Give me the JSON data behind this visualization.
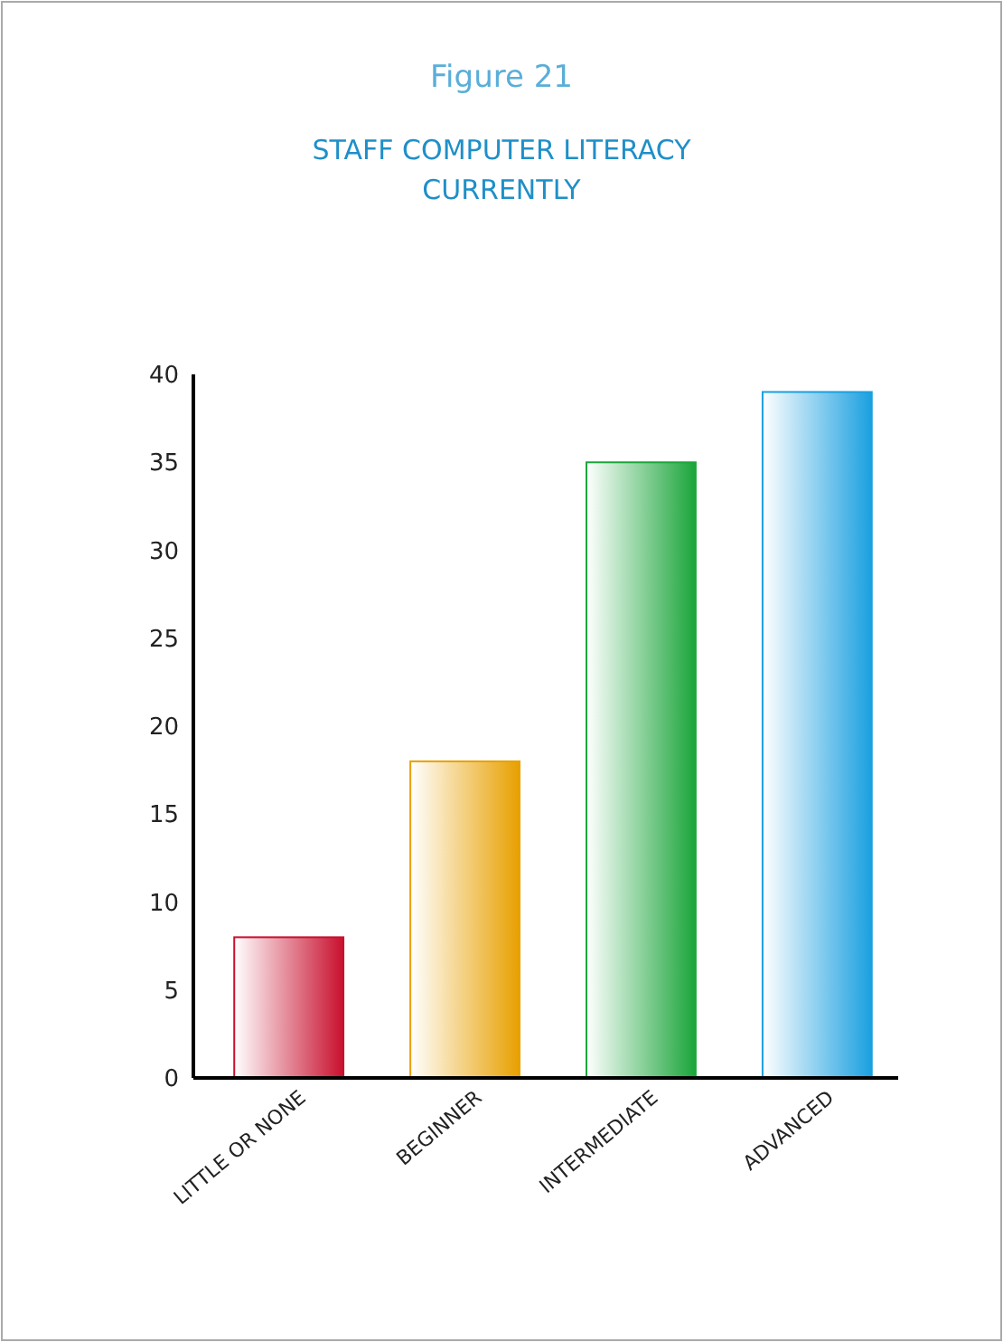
{
  "chart_data": {
    "type": "bar",
    "title": "Figure 21",
    "subtitle": "STAFF COMPUTER LITERACY CURRENTLY",
    "categories": [
      "LITTLE OR NONE",
      "BEGINNER",
      "INTERMEDIATE",
      "ADVANCED"
    ],
    "values": [
      8,
      18,
      35,
      39
    ],
    "colors": [
      "#c8102e",
      "#e8a000",
      "#1aa53a",
      "#1aa0e0"
    ],
    "ylim": [
      0,
      40
    ],
    "yticks": [
      0,
      5,
      10,
      15,
      20,
      25,
      30,
      35,
      40
    ],
    "grid": false
  }
}
